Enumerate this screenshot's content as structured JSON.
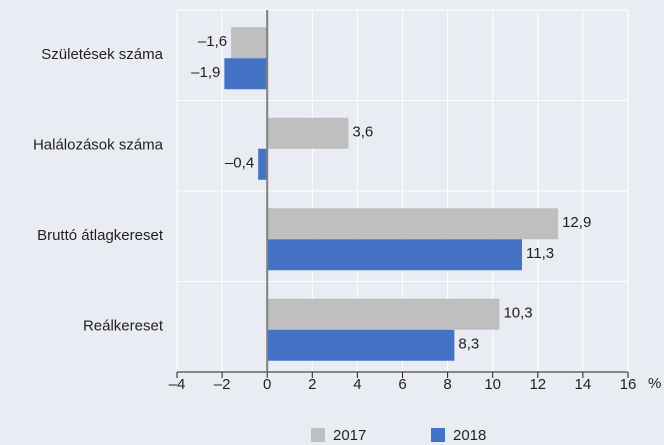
{
  "chart_data": {
    "type": "hbar",
    "categories": [
      "Születések száma",
      "Halálozások száma",
      "Bruttó átlagkereset",
      "Reálkereset"
    ],
    "series": [
      {
        "name": "2017",
        "color": "#bfbfbf",
        "values": [
          -1.6,
          3.6,
          12.9,
          10.3
        ],
        "value_labels": [
          "–1,6",
          "3,6",
          "12,9",
          "10,3"
        ]
      },
      {
        "name": "2018",
        "color": "#4472c4",
        "values": [
          -1.9,
          -0.4,
          11.3,
          8.3
        ],
        "value_labels": [
          "–1,9",
          "–0,4",
          "11,3",
          "8,3"
        ]
      }
    ],
    "xlim": [
      -4,
      16
    ],
    "xticks": [
      {
        "value": -4,
        "label": "–4"
      },
      {
        "value": -2,
        "label": "–2"
      },
      0,
      2,
      4,
      6,
      8,
      10,
      12,
      14,
      16
    ],
    "xlabel": "%",
    "grid": true,
    "legend": "bottom"
  }
}
